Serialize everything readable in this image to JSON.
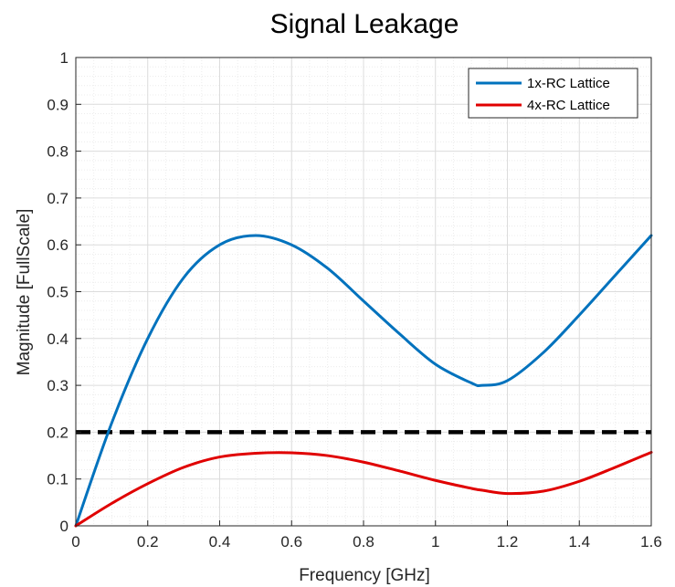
{
  "chart_data": {
    "type": "line",
    "title": "Signal Leakage",
    "xlabel": "Frequency [GHz]",
    "ylabel": "Magnitude [FullScale]",
    "xlim": [
      0,
      1.6
    ],
    "ylim": [
      0,
      1
    ],
    "x_ticks": [
      "0",
      "0.2",
      "0.4",
      "0.6",
      "0.8",
      "1",
      "1.2",
      "1.4",
      "1.6"
    ],
    "y_ticks": [
      "0",
      "0.1",
      "0.2",
      "0.3",
      "0.4",
      "0.5",
      "0.6",
      "0.7",
      "0.8",
      "0.9",
      "1"
    ],
    "grid": true,
    "minor_grid": true,
    "legend_position": "top-right",
    "x": [
      0,
      0.1,
      0.2,
      0.3,
      0.4,
      0.5,
      0.6,
      0.7,
      0.8,
      0.9,
      1.0,
      1.1,
      1.13,
      1.2,
      1.3,
      1.4,
      1.5,
      1.6
    ],
    "series": [
      {
        "name": "1x-RC Lattice",
        "color": "#0072BD",
        "style": "solid",
        "values": [
          0,
          0.22,
          0.4,
          0.53,
          0.6,
          0.62,
          0.6,
          0.55,
          0.48,
          0.41,
          0.345,
          0.305,
          0.3,
          0.31,
          0.37,
          0.45,
          0.535,
          0.62
        ]
      },
      {
        "name": "4x-RC Lattice",
        "color": "#E00000",
        "style": "solid",
        "values": [
          0,
          0.048,
          0.09,
          0.125,
          0.147,
          0.155,
          0.156,
          0.15,
          0.136,
          0.117,
          0.097,
          0.08,
          0.076,
          0.069,
          0.074,
          0.095,
          0.125,
          0.157
        ]
      }
    ],
    "reference_lines": [
      {
        "y": 0.2,
        "color": "#000000",
        "style": "dashed"
      }
    ]
  }
}
